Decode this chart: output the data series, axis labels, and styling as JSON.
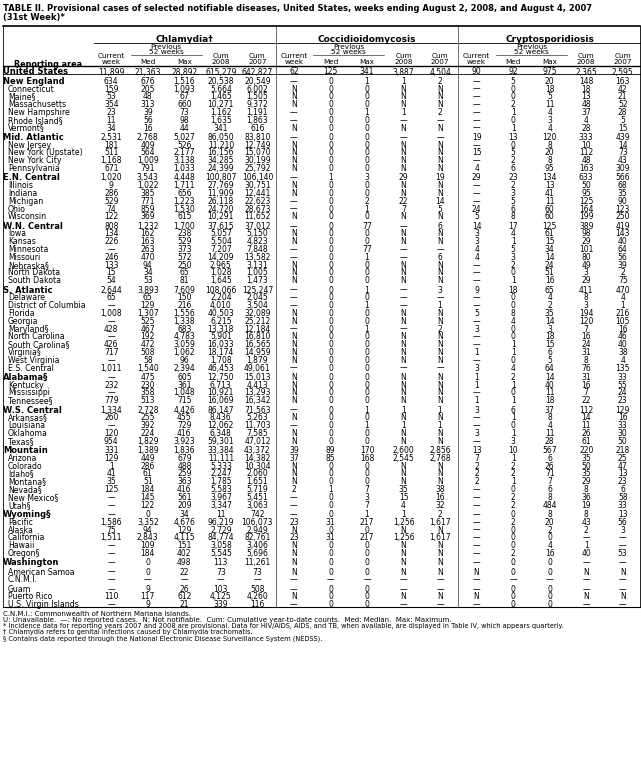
{
  "title1": "TABLE II. Provisional cases of selected notifiable diseases, United States, weeks ending August 2, 2008, and August 4, 2007",
  "title2": "(31st Week)*",
  "col_groups": [
    "Chlamydia†",
    "Coccidioidomycosis",
    "Cryptosporidiosis"
  ],
  "footnote_lines": [
    "C.N.M.I.: Commonwealth of Northern Mariana Islands.",
    "U: Unavailable.  —: No reported cases.  N: Not notifiable.  Cum: Cumulative year-to-date counts.  Med: Median.  Max: Maximum.",
    "* Incidence data for reporting years 2007 and 2008 are provisional. Data for HIV/AIDS, AIDS, and TB, when available, are displayed in Table IV, which appears quarterly.",
    "† Chlamydia refers to genital infections caused by Chlamydia trachomatis.",
    "§ Contains data reported through the National Electronic Disease Surveillance System (NEDSS)."
  ],
  "rows": [
    [
      "United States",
      "11,899",
      "21,363",
      "28,892",
      "615,279",
      "642,827",
      "62",
      "125",
      "341",
      "3,887",
      "4,504",
      "90",
      "92",
      "975",
      "2,365",
      "2,595"
    ],
    [
      "New England",
      "634",
      "676",
      "1,516",
      "20,538",
      "20,549",
      "—",
      "0",
      "1",
      "1",
      "2",
      "—",
      "5",
      "20",
      "148",
      "163"
    ],
    [
      "Connecticut",
      "159",
      "205",
      "1,093",
      "5,664",
      "6,002",
      "N",
      "0",
      "0",
      "N",
      "N",
      "—",
      "0",
      "18",
      "18",
      "42"
    ],
    [
      "Maine§",
      "53",
      "48",
      "67",
      "1,465",
      "1,505",
      "N",
      "0",
      "0",
      "N",
      "N",
      "—",
      "0",
      "5",
      "13",
      "21"
    ],
    [
      "Massachusetts",
      "354",
      "313",
      "660",
      "10,271",
      "9,372",
      "N",
      "0",
      "0",
      "N",
      "N",
      "—",
      "2",
      "11",
      "48",
      "52"
    ],
    [
      "New Hampshire",
      "23",
      "39",
      "73",
      "1,162",
      "1,191",
      "—",
      "0",
      "1",
      "1",
      "2",
      "—",
      "1",
      "4",
      "37",
      "28"
    ],
    [
      "Rhode Island§",
      "11",
      "56",
      "98",
      "1,635",
      "1,863",
      "—",
      "0",
      "0",
      "—",
      "—",
      "—",
      "0",
      "3",
      "4",
      "5"
    ],
    [
      "Vermont§",
      "34",
      "16",
      "44",
      "341",
      "616",
      "N",
      "0",
      "0",
      "N",
      "N",
      "—",
      "1",
      "4",
      "28",
      "15"
    ],
    [
      "Mid. Atlantic",
      "2,531",
      "2,768",
      "5,027",
      "86,050",
      "83,810",
      "—",
      "0",
      "0",
      "—",
      "—",
      "19",
      "13",
      "120",
      "333",
      "439"
    ],
    [
      "New Jersey",
      "181",
      "409",
      "526",
      "11,210",
      "12,749",
      "N",
      "0",
      "0",
      "N",
      "N",
      "—",
      "0",
      "8",
      "10",
      "14"
    ],
    [
      "New York (Upstate)",
      "511",
      "564",
      "2,177",
      "16,156",
      "15,070",
      "N",
      "0",
      "0",
      "N",
      "N",
      "15",
      "5",
      "20",
      "112",
      "73"
    ],
    [
      "New York City",
      "1,168",
      "1,009",
      "3,138",
      "34,285",
      "30,199",
      "N",
      "0",
      "0",
      "N",
      "N",
      "—",
      "2",
      "8",
      "48",
      "43"
    ],
    [
      "Pennsylvania",
      "671",
      "791",
      "1,033",
      "24,399",
      "25,792",
      "N",
      "0",
      "0",
      "N",
      "N",
      "4",
      "6",
      "95",
      "163",
      "309"
    ],
    [
      "E.N. Central",
      "1,020",
      "3,543",
      "4,448",
      "100,807",
      "106,140",
      "—",
      "1",
      "3",
      "29",
      "19",
      "29",
      "23",
      "134",
      "633",
      "566"
    ],
    [
      "Illinois",
      "9",
      "1,022",
      "1,711",
      "27,769",
      "30,751",
      "N",
      "0",
      "0",
      "N",
      "N",
      "—",
      "2",
      "13",
      "50",
      "68"
    ],
    [
      "Indiana",
      "286",
      "385",
      "656",
      "11,909",
      "12,441",
      "N",
      "0",
      "0",
      "N",
      "N",
      "—",
      "3",
      "41",
      "95",
      "35"
    ],
    [
      "Michigan",
      "529",
      "771",
      "1,223",
      "26,118",
      "22,623",
      "—",
      "0",
      "2",
      "22",
      "14",
      "—",
      "5",
      "11",
      "125",
      "90"
    ],
    [
      "Ohio",
      "74",
      "859",
      "1,530",
      "24,720",
      "28,673",
      "—",
      "0",
      "1",
      "7",
      "5",
      "24",
      "6",
      "60",
      "164",
      "123"
    ],
    [
      "Wisconsin",
      "122",
      "369",
      "615",
      "10,291",
      "11,652",
      "N",
      "0",
      "0",
      "N",
      "N",
      "5",
      "8",
      "60",
      "199",
      "250"
    ],
    [
      "W.N. Central",
      "808",
      "1,232",
      "1,700",
      "37,615",
      "37,012",
      "—",
      "0",
      "77",
      "—",
      "6",
      "14",
      "17",
      "125",
      "389",
      "419"
    ],
    [
      "Iowa",
      "134",
      "162",
      "238",
      "5,057",
      "5,150",
      "N",
      "0",
      "0",
      "N",
      "N",
      "3",
      "4",
      "61",
      "98",
      "143"
    ],
    [
      "Kansas",
      "226",
      "163",
      "529",
      "5,504",
      "4,823",
      "N",
      "0",
      "0",
      "N",
      "N",
      "3",
      "1",
      "15",
      "29",
      "40"
    ],
    [
      "Minnesota",
      "—",
      "263",
      "373",
      "7,207",
      "7,848",
      "—",
      "0",
      "77",
      "—",
      "—",
      "4",
      "5",
      "34",
      "101",
      "64"
    ],
    [
      "Missouri",
      "246",
      "470",
      "572",
      "14,209",
      "13,582",
      "—",
      "0",
      "1",
      "—",
      "6",
      "4",
      "3",
      "14",
      "80",
      "56"
    ],
    [
      "Nebraska§",
      "133",
      "94",
      "250",
      "2,965",
      "3,131",
      "N",
      "0",
      "0",
      "N",
      "N",
      "—",
      "2",
      "24",
      "49",
      "39"
    ],
    [
      "North Dakota",
      "15",
      "34",
      "65",
      "1,028",
      "1,005",
      "N",
      "0",
      "0",
      "N",
      "N",
      "—",
      "0",
      "51",
      "3",
      "2"
    ],
    [
      "South Dakota",
      "54",
      "53",
      "81",
      "1,645",
      "1,473",
      "N",
      "0",
      "0",
      "N",
      "N",
      "—",
      "1",
      "16",
      "29",
      "75"
    ],
    [
      "S. Atlantic",
      "2,644",
      "3,893",
      "7,609",
      "108,066",
      "125,247",
      "—",
      "0",
      "1",
      "—",
      "3",
      "9",
      "18",
      "65",
      "411",
      "470"
    ],
    [
      "Delaware",
      "65",
      "65",
      "150",
      "2,204",
      "2,045",
      "—",
      "0",
      "0",
      "—",
      "—",
      "—",
      "0",
      "4",
      "8",
      "4"
    ],
    [
      "District of Columbia",
      "—",
      "129",
      "216",
      "4,010",
      "3,504",
      "—",
      "0",
      "1",
      "—",
      "1",
      "—",
      "0",
      "2",
      "3",
      "1"
    ],
    [
      "Florida",
      "1,008",
      "1,307",
      "1,556",
      "40,503",
      "32,089",
      "N",
      "0",
      "0",
      "N",
      "N",
      "5",
      "8",
      "35",
      "194",
      "216"
    ],
    [
      "Georgia",
      "—",
      "525",
      "1,338",
      "6,215",
      "25,212",
      "N",
      "0",
      "0",
      "N",
      "N",
      "—",
      "4",
      "14",
      "120",
      "105"
    ],
    [
      "Maryland§",
      "428",
      "467",
      "683",
      "13,318",
      "12,184",
      "—",
      "0",
      "1",
      "—",
      "2",
      "3",
      "0",
      "3",
      "7",
      "16"
    ],
    [
      "North Carolina",
      "—",
      "192",
      "4,783",
      "5,901",
      "16,810",
      "N",
      "0",
      "0",
      "N",
      "N",
      "—",
      "0",
      "18",
      "16",
      "46"
    ],
    [
      "South Carolina§",
      "426",
      "472",
      "3,059",
      "16,033",
      "16,565",
      "N",
      "0",
      "0",
      "N",
      "N",
      "—",
      "1",
      "15",
      "24",
      "40"
    ],
    [
      "Virginia§",
      "717",
      "508",
      "1,062",
      "18,174",
      "14,959",
      "N",
      "0",
      "0",
      "N",
      "N",
      "1",
      "1",
      "6",
      "31",
      "38"
    ],
    [
      "West Virginia",
      "—",
      "58",
      "96",
      "1,708",
      "1,879",
      "N",
      "0",
      "0",
      "N",
      "N",
      "—",
      "0",
      "5",
      "8",
      "4"
    ],
    [
      "E.S. Central",
      "1,011",
      "1,540",
      "2,394",
      "46,453",
      "49,061",
      "—",
      "0",
      "0",
      "—",
      "—",
      "3",
      "4",
      "64",
      "76",
      "135"
    ],
    [
      "Alabama§",
      "—",
      "475",
      "605",
      "12,750",
      "15,013",
      "N",
      "0",
      "0",
      "N",
      "N",
      "1",
      "2",
      "14",
      "31",
      "33"
    ],
    [
      "Kentucky",
      "232",
      "230",
      "361",
      "6,713",
      "4,413",
      "N",
      "0",
      "0",
      "N",
      "N",
      "1",
      "1",
      "40",
      "16",
      "55"
    ],
    [
      "Mississippi",
      "—",
      "358",
      "1,048",
      "10,921",
      "13,293",
      "N",
      "0",
      "0",
      "N",
      "N",
      "—",
      "0",
      "11",
      "7",
      "24"
    ],
    [
      "Tennessee§",
      "779",
      "513",
      "715",
      "16,069",
      "16,342",
      "N",
      "0",
      "0",
      "N",
      "N",
      "1",
      "1",
      "18",
      "22",
      "23"
    ],
    [
      "W.S. Central",
      "1,334",
      "2,728",
      "4,426",
      "86,147",
      "71,563",
      "—",
      "0",
      "1",
      "1",
      "1",
      "3",
      "6",
      "37",
      "112",
      "129"
    ],
    [
      "Arkansas§",
      "260",
      "255",
      "455",
      "8,436",
      "5,263",
      "N",
      "0",
      "0",
      "N",
      "N",
      "—",
      "1",
      "8",
      "14",
      "16"
    ],
    [
      "Louisiana",
      "—",
      "392",
      "729",
      "12,062",
      "11,703",
      "—",
      "0",
      "1",
      "1",
      "1",
      "—",
      "0",
      "4",
      "11",
      "33"
    ],
    [
      "Oklahoma",
      "120",
      "224",
      "416",
      "6,348",
      "7,585",
      "N",
      "0",
      "0",
      "N",
      "N",
      "3",
      "1",
      "11",
      "26",
      "30"
    ],
    [
      "Texas§",
      "954",
      "1,829",
      "3,923",
      "59,301",
      "47,012",
      "N",
      "0",
      "0",
      "N",
      "N",
      "—",
      "3",
      "28",
      "61",
      "50"
    ],
    [
      "Mountain",
      "331",
      "1,389",
      "1,836",
      "33,384",
      "43,372",
      "39",
      "89",
      "170",
      "2,600",
      "2,856",
      "13",
      "10",
      "567",
      "220",
      "218"
    ],
    [
      "Arizona",
      "129",
      "449",
      "679",
      "11,111",
      "14,382",
      "37",
      "85",
      "168",
      "2,545",
      "2,768",
      "7",
      "1",
      "6",
      "35",
      "25"
    ],
    [
      "Colorado",
      "1",
      "286",
      "488",
      "5,333",
      "10,304",
      "N",
      "0",
      "0",
      "N",
      "N",
      "2",
      "2",
      "26",
      "50",
      "47"
    ],
    [
      "Idaho§",
      "41",
      "61",
      "259",
      "2,247",
      "2,060",
      "N",
      "0",
      "0",
      "N",
      "N",
      "2",
      "2",
      "71",
      "35",
      "13"
    ],
    [
      "Montana§",
      "35",
      "51",
      "363",
      "1,785",
      "1,651",
      "N",
      "0",
      "0",
      "N",
      "N",
      "2",
      "1",
      "7",
      "29",
      "23"
    ],
    [
      "Nevada§",
      "125",
      "184",
      "416",
      "5,583",
      "5,719",
      "2",
      "1",
      "7",
      "35",
      "38",
      "—",
      "0",
      "6",
      "8",
      "6"
    ],
    [
      "New Mexico§",
      "—",
      "145",
      "561",
      "3,967",
      "5,451",
      "—",
      "0",
      "3",
      "15",
      "16",
      "—",
      "2",
      "8",
      "36",
      "58"
    ],
    [
      "Utah§",
      "—",
      "122",
      "209",
      "3,347",
      "3,063",
      "—",
      "0",
      "7",
      "4",
      "32",
      "—",
      "2",
      "484",
      "19",
      "33"
    ],
    [
      "Wyoming§",
      "—",
      "0",
      "34",
      "11",
      "742",
      "—",
      "0",
      "1",
      "1",
      "2",
      "—",
      "0",
      "8",
      "8",
      "13"
    ],
    [
      "Pacific",
      "1,586",
      "3,352",
      "4,676",
      "96,219",
      "106,073",
      "23",
      "31",
      "217",
      "1,256",
      "1,617",
      "—",
      "2",
      "20",
      "43",
      "56"
    ],
    [
      "Alaska",
      "75",
      "94",
      "129",
      "2,729",
      "2,949",
      "N",
      "0",
      "0",
      "N",
      "N",
      "—",
      "0",
      "2",
      "2",
      "3"
    ],
    [
      "California",
      "1,511",
      "2,843",
      "4,115",
      "84,774",
      "82,761",
      "23",
      "31",
      "217",
      "1,256",
      "1,617",
      "—",
      "0",
      "0",
      "—",
      "—"
    ],
    [
      "Hawaii",
      "—",
      "109",
      "151",
      "3,058",
      "3,406",
      "N",
      "0",
      "0",
      "N",
      "N",
      "—",
      "0",
      "4",
      "1",
      "—"
    ],
    [
      "Oregon§",
      "—",
      "184",
      "402",
      "5,545",
      "5,696",
      "N",
      "0",
      "0",
      "N",
      "N",
      "—",
      "2",
      "16",
      "40",
      "53"
    ],
    [
      "Washington",
      "—",
      "0",
      "498",
      "113",
      "11,261",
      "N",
      "0",
      "0",
      "N",
      "N",
      "—",
      "0",
      "0",
      "—",
      "—"
    ],
    [
      "American Samoa",
      "—",
      "0",
      "22",
      "73",
      "73",
      "N",
      "0",
      "0",
      "N",
      "N",
      "N",
      "0",
      "0",
      "N",
      "N"
    ],
    [
      "C.N.M.I.",
      "—",
      "—",
      "—",
      "—",
      "—",
      "—",
      "—",
      "—",
      "—",
      "—",
      "—",
      "—",
      "—",
      "—",
      "—"
    ],
    [
      "Guam",
      "—",
      "9",
      "26",
      "103",
      "508",
      "—",
      "0",
      "0",
      "—",
      "—",
      "—",
      "0",
      "0",
      "—",
      "—"
    ],
    [
      "Puerto Rico",
      "110",
      "117",
      "612",
      "4,125",
      "4,260",
      "N",
      "0",
      "0",
      "N",
      "N",
      "N",
      "0",
      "0",
      "N",
      "N"
    ],
    [
      "U.S. Virgin Islands",
      "—",
      "9",
      "21",
      "339",
      "116",
      "—",
      "0",
      "0",
      "—",
      "—",
      "—",
      "0",
      "0",
      "—",
      "—"
    ]
  ],
  "bold_rows": [
    0,
    1,
    8,
    13,
    19,
    27,
    38,
    42,
    47,
    55,
    61
  ],
  "gap_before_rows": [
    1,
    8,
    13,
    19,
    27,
    38,
    42,
    47,
    55,
    61,
    62,
    64
  ],
  "figwidth": 6.41,
  "figheight": 7.58,
  "dpi": 100
}
